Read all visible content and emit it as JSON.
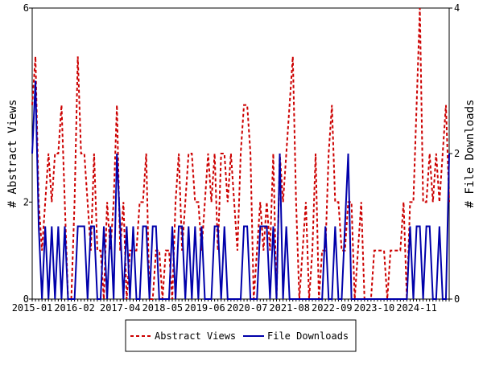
{
  "chart_data": {
    "type": "line",
    "y_label": "# Abstract Views",
    "y2_label": "# File Downloads",
    "categories": [
      "2015-01",
      null,
      null,
      null,
      null,
      null,
      null,
      null,
      null,
      null,
      null,
      null,
      null,
      "2016-02",
      null,
      null,
      null,
      null,
      null,
      null,
      null,
      null,
      null,
      null,
      null,
      null,
      null,
      "2017-04",
      null,
      null,
      null,
      null,
      null,
      null,
      null,
      null,
      null,
      null,
      null,
      null,
      "2018-05",
      null,
      null,
      null,
      null,
      null,
      null,
      null,
      null,
      null,
      null,
      null,
      null,
      "2019-06",
      null,
      null,
      null,
      null,
      null,
      null,
      null,
      null,
      null,
      null,
      null,
      null,
      "2020-07",
      null,
      null,
      null,
      null,
      null,
      null,
      null,
      null,
      null,
      null,
      null,
      null,
      "2021-08",
      null,
      null,
      null,
      null,
      null,
      null,
      null,
      null,
      null,
      null,
      null,
      null,
      "2022-09",
      null,
      null,
      null,
      null,
      null,
      null,
      null,
      null,
      null,
      null,
      null,
      null,
      "2023-10",
      null,
      null,
      null,
      null,
      null,
      null,
      null,
      null,
      null,
      null,
      null,
      null,
      "2024-11",
      null,
      null,
      null,
      null,
      null,
      null,
      null,
      null,
      null,
      null
    ],
    "series": [
      {
        "name": "Abstract Views",
        "color": "#cc0000",
        "dash": true,
        "values": [
          4,
          5,
          2,
          1,
          2,
          3,
          2,
          3,
          3,
          4,
          2,
          0,
          0,
          2,
          5,
          3,
          3,
          2,
          1,
          3,
          1,
          1,
          0,
          2,
          1,
          2,
          4,
          1,
          2,
          0,
          1,
          1,
          1,
          2,
          2,
          3,
          0,
          0,
          1,
          1,
          0,
          1,
          1,
          0,
          2,
          3,
          1,
          2,
          3,
          3,
          2,
          2,
          1,
          2,
          3,
          2,
          3,
          1,
          3,
          3,
          2,
          3,
          2,
          1,
          3,
          4,
          4,
          3,
          0,
          1,
          2,
          1,
          2,
          1,
          3,
          0,
          3,
          2,
          3,
          4,
          5,
          2,
          0,
          1,
          2,
          0,
          1,
          3,
          0,
          1,
          1,
          3,
          4,
          2,
          2,
          1,
          1,
          2,
          2,
          0,
          1,
          2,
          0,
          0,
          0,
          1,
          1,
          1,
          1,
          0,
          1,
          1,
          1,
          1,
          2,
          0,
          2,
          2,
          4,
          6,
          2,
          2,
          3,
          2,
          3,
          2,
          3,
          4,
          2
        ]
      },
      {
        "name": "File Downloads",
        "color": "#0000aa",
        "dash": false,
        "axis": "y2",
        "values": [
          2,
          3,
          1,
          0,
          1,
          0,
          1,
          0,
          1,
          0,
          1,
          0,
          0,
          0,
          1,
          1,
          1,
          0,
          1,
          1,
          0,
          0,
          1,
          0,
          1,
          0,
          2,
          1,
          0,
          1,
          0,
          1,
          0,
          0,
          1,
          1,
          0,
          1,
          1,
          0,
          0,
          0,
          0,
          1,
          0,
          1,
          1,
          0,
          1,
          0,
          1,
          0,
          1,
          0,
          0,
          0,
          1,
          1,
          0,
          1,
          0,
          0,
          0,
          0,
          0,
          1,
          1,
          0,
          0,
          0,
          1,
          1,
          1,
          0,
          1,
          0,
          2,
          0,
          1,
          0,
          0,
          0,
          0,
          0,
          0,
          0,
          0,
          0,
          0,
          0,
          1,
          0,
          0,
          1,
          0,
          0,
          1,
          2,
          0,
          0,
          0,
          0,
          0,
          0,
          0,
          0,
          0,
          0,
          0,
          0,
          0,
          0,
          0,
          0,
          0,
          0,
          1,
          0,
          1,
          1,
          0,
          1,
          1,
          0,
          0,
          1,
          0,
          0,
          2
        ]
      }
    ],
    "ylim": [
      0,
      6
    ],
    "yticks": [
      0,
      2,
      6
    ],
    "y2lim": [
      0,
      4
    ],
    "y2ticks": [
      0,
      2,
      4
    ]
  }
}
